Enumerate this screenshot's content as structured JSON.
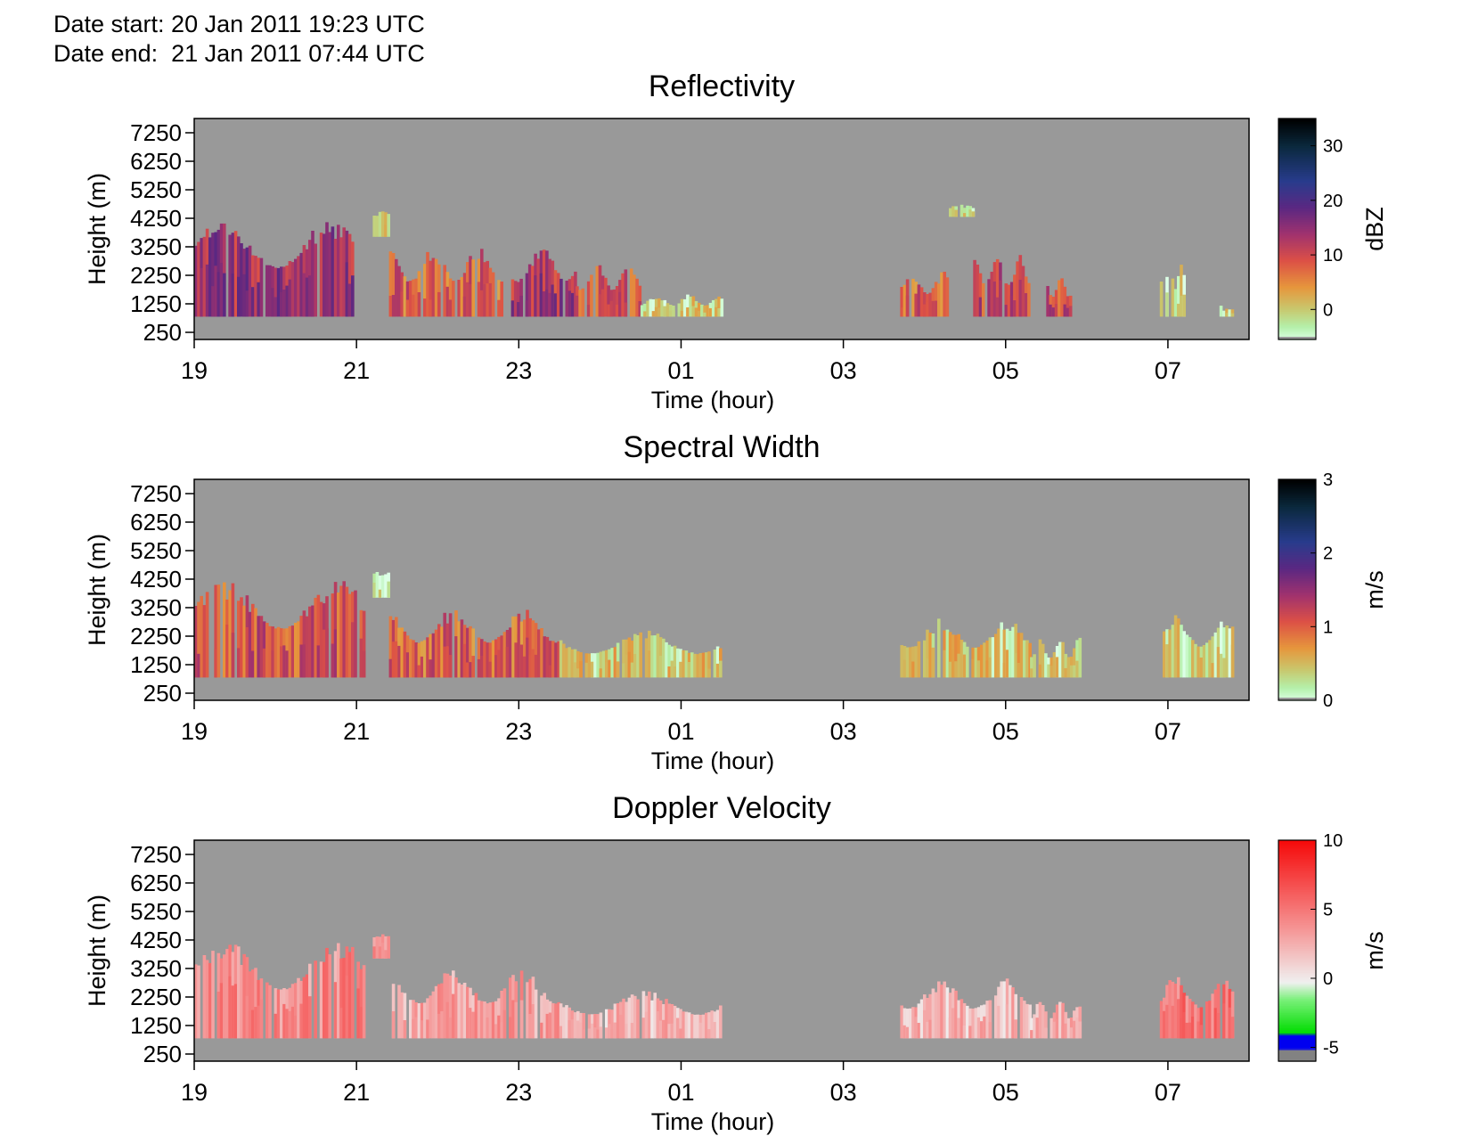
{
  "header": {
    "date_start": "Date start: 20 Jan 2011 19:23 UTC",
    "date_end": "Date end:  21 Jan 2011 07:44 UTC"
  },
  "chart_data": [
    {
      "type": "heatmap",
      "title": "Reflectivity",
      "xlabel": "Time (hour)",
      "ylabel": "Height (m)",
      "x_tick_labels": [
        "19",
        "21",
        "23",
        "01",
        "03",
        "05",
        "07"
      ],
      "y_tick_labels": [
        "7250",
        "6250",
        "5250",
        "4250",
        "3250",
        "2250",
        "1250",
        "250"
      ],
      "xlim_hours": [
        19.0,
        32.0
      ],
      "ylim": [
        0,
        7750
      ],
      "background_color": "#999999",
      "colorbar": {
        "label": "dBZ",
        "ticks": [
          "30",
          "20",
          "10",
          "0"
        ],
        "range": [
          -5.5,
          35
        ],
        "colormap": "cubehelix-like (black-blue-purple-red-orange-yellow-mint)"
      },
      "echo_regions": [
        {
          "t_start": 19.0,
          "t_end": 21.0,
          "top_m": 4300,
          "value": 14
        },
        {
          "t_start": 21.2,
          "t_end": 21.4,
          "top_m": 4500,
          "value": -2,
          "base_m": 3600
        },
        {
          "t_start": 21.4,
          "t_end": 22.8,
          "top_m": 3300,
          "value": 8
        },
        {
          "t_start": 22.8,
          "t_end": 23.7,
          "top_m": 3300,
          "value": 13
        },
        {
          "t_start": 23.7,
          "t_end": 24.5,
          "top_m": 2700,
          "value": 9
        },
        {
          "t_start": 24.5,
          "t_end": 25.5,
          "top_m": 1600,
          "value": -1
        },
        {
          "t_start": 27.7,
          "t_end": 28.3,
          "top_m": 2400,
          "value": 8
        },
        {
          "t_start": 28.3,
          "t_end": 28.6,
          "top_m": 4800,
          "value": -2,
          "base_m": 4300
        },
        {
          "t_start": 28.6,
          "t_end": 29.3,
          "top_m": 3000,
          "value": 11
        },
        {
          "t_start": 29.5,
          "t_end": 29.8,
          "top_m": 2200,
          "value": 10
        },
        {
          "t_start": 30.9,
          "t_end": 31.2,
          "top_m": 2800,
          "value": -2
        },
        {
          "t_start": 31.6,
          "t_end": 31.8,
          "top_m": 1200,
          "value": -2
        }
      ]
    },
    {
      "type": "heatmap",
      "title": "Spectral Width",
      "xlabel": "Time (hour)",
      "ylabel": "Height (m)",
      "x_tick_labels": [
        "19",
        "21",
        "23",
        "01",
        "03",
        "05",
        "07"
      ],
      "y_tick_labels": [
        "7250",
        "6250",
        "5250",
        "4250",
        "3250",
        "2250",
        "1250",
        "250"
      ],
      "xlim_hours": [
        19.0,
        32.0
      ],
      "ylim": [
        0,
        7750
      ],
      "background_color": "#999999",
      "colorbar": {
        "label": "m/s",
        "ticks": [
          "3",
          "2",
          "1",
          "0"
        ],
        "range": [
          0,
          3
        ],
        "colormap": "cubehelix-like (black-blue-purple-red-orange-yellow-mint)"
      },
      "echo_regions": [
        {
          "t_start": 19.0,
          "t_end": 21.1,
          "top_m": 4300,
          "value": 1.1
        },
        {
          "t_start": 21.2,
          "t_end": 21.4,
          "top_m": 4500,
          "value": 0.2,
          "base_m": 3600
        },
        {
          "t_start": 21.4,
          "t_end": 23.5,
          "top_m": 3300,
          "value": 1.0
        },
        {
          "t_start": 23.5,
          "t_end": 25.5,
          "top_m": 2500,
          "value": 0.4
        },
        {
          "t_start": 27.7,
          "t_end": 29.3,
          "top_m": 2900,
          "value": 0.4
        },
        {
          "t_start": 29.3,
          "t_end": 29.9,
          "top_m": 2200,
          "value": 0.3
        },
        {
          "t_start": 30.9,
          "t_end": 31.8,
          "top_m": 3000,
          "value": 0.3
        }
      ]
    },
    {
      "type": "heatmap",
      "title": "Doppler Velocity",
      "xlabel": "Time (hour)",
      "ylabel": "Height (m)",
      "x_tick_labels": [
        "19",
        "21",
        "23",
        "01",
        "03",
        "05",
        "07"
      ],
      "y_tick_labels": [
        "7250",
        "6250",
        "5250",
        "4250",
        "3250",
        "2250",
        "1250",
        "250"
      ],
      "xlim_hours": [
        19.0,
        32.0
      ],
      "ylim": [
        0,
        7750
      ],
      "background_color": "#999999",
      "colorbar": {
        "label": "m/s",
        "ticks": [
          "10",
          "5",
          "0",
          "-5"
        ],
        "range": [
          -6,
          10
        ],
        "colormap": "red-white-green-blue diverging"
      },
      "echo_regions": [
        {
          "t_start": 19.0,
          "t_end": 21.1,
          "top_m": 4300,
          "value": 4
        },
        {
          "t_start": 21.2,
          "t_end": 21.4,
          "top_m": 4500,
          "value": 3,
          "base_m": 3600
        },
        {
          "t_start": 21.4,
          "t_end": 23.5,
          "top_m": 3300,
          "value": 3
        },
        {
          "t_start": 23.5,
          "t_end": 25.5,
          "top_m": 2500,
          "value": 2
        },
        {
          "t_start": 27.7,
          "t_end": 29.3,
          "top_m": 2900,
          "value": 2
        },
        {
          "t_start": 29.3,
          "t_end": 29.9,
          "top_m": 2200,
          "value": 2
        },
        {
          "t_start": 30.9,
          "t_end": 31.8,
          "top_m": 3000,
          "value": 5
        }
      ]
    }
  ]
}
